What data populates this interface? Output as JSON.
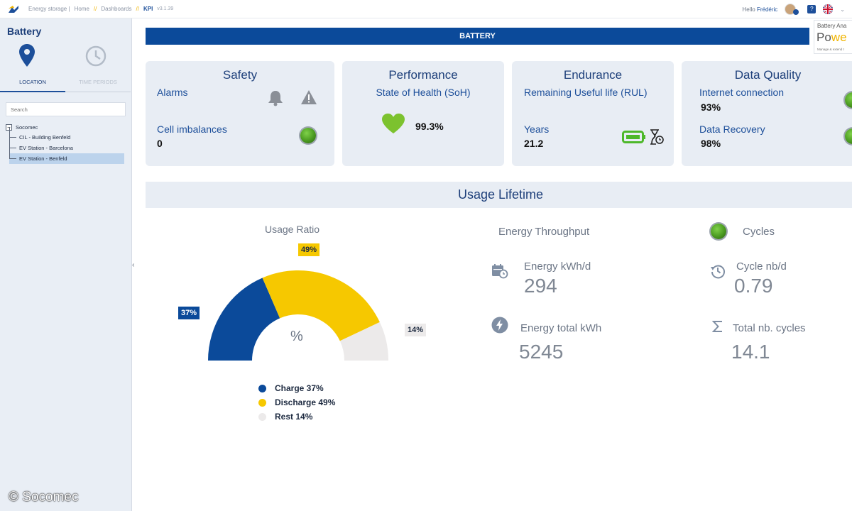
{
  "topbar": {
    "crumbs": [
      "Energy storage |",
      "Home",
      "Dashboards",
      "KPI"
    ],
    "separator": "//",
    "version": "v3.1.39",
    "hello": "Hello",
    "user": "Frédéric"
  },
  "sidebar": {
    "title": "Battery",
    "tabs": [
      "LOCATION",
      "TIME PERIODS"
    ],
    "search_placeholder": "Search",
    "tree": {
      "root": "Socomec",
      "items": [
        "CIL - Building Benfeld",
        "EV Station - Barcelona",
        "EV Station - Benfeld"
      ]
    },
    "copyright": "© Socomec"
  },
  "main": {
    "banner": "BATTERY",
    "brand": {
      "line1": "Battery Ana",
      "line2a": "Po",
      "line2b": "we",
      "line3": "Manage & extend t"
    }
  },
  "cards": {
    "safety": {
      "title": "Safety",
      "alarms": "Alarms",
      "imbalance_label": "Cell imbalances",
      "imbalance_value": "0"
    },
    "performance": {
      "title": "Performance",
      "soh_label": "State of Health (SoH)",
      "soh_value": "99.3%"
    },
    "endurance": {
      "title": "Endurance",
      "rul_label": "Remaining Useful life (RUL)",
      "years_label": "Years",
      "years_value": "21.2"
    },
    "quality": {
      "title": "Data Quality",
      "internet_label": "Internet connection",
      "internet_value": "93%",
      "recovery_label": "Data Recovery",
      "recovery_value": "98%"
    }
  },
  "usage": {
    "title": "Usage Lifetime",
    "ratio_title": "Usage Ratio",
    "center": "%",
    "energy_throughput": "Energy Throughput",
    "cycles": "Cycles",
    "energy_day_label": "Energy kWh/d",
    "energy_day_value": "294",
    "cycle_day_label": "Cycle nb/d",
    "cycle_day_value": "0.79",
    "energy_total_label": "Energy total kWh",
    "energy_total_value": "5245",
    "total_cycles_label": "Total nb. cycles",
    "total_cycles_value": "14.1"
  },
  "chart_data": {
    "type": "pie",
    "title": "Usage Ratio",
    "categories": [
      "Charge",
      "Discharge",
      "Rest"
    ],
    "values": [
      37,
      49,
      14
    ],
    "labels": [
      "37%",
      "49%",
      "14%"
    ],
    "legend": [
      "Charge 37%",
      "Discharge 49%",
      "Rest 14%"
    ],
    "colors": [
      "#0b4a9a",
      "#f6c800",
      "#eceaea"
    ]
  }
}
